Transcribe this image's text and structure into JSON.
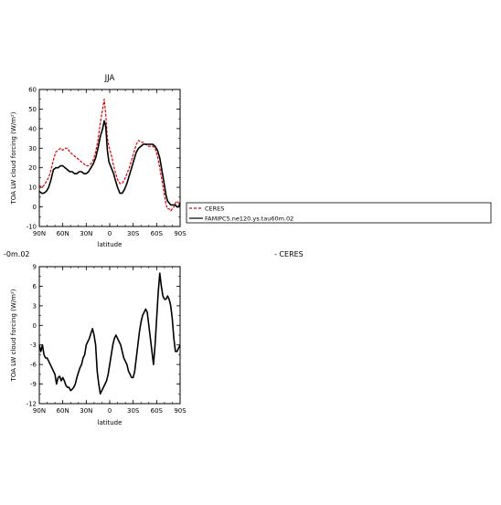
{
  "left_snippet": "-0m.02",
  "right_snippet": "- CERES",
  "legend": {
    "entries": [
      {
        "label": "CERES",
        "color": "#dd0000",
        "dash": true
      },
      {
        "label": "FAMIPC5.ne120.ys.tau60m.02",
        "color": "#000000",
        "dash": false
      }
    ]
  },
  "chart_data": [
    {
      "type": "line",
      "title": "JJA",
      "xlabel": "latitude",
      "ylabel": "TOA LW cloud forcing (W/m²)",
      "xlim": [
        90,
        -90
      ],
      "ylim": [
        -10,
        60
      ],
      "xtick_values": [
        90,
        60,
        30,
        0,
        -30,
        -60,
        -90
      ],
      "xtick_labels": [
        "90N",
        "60N",
        "30N",
        "0",
        "30S",
        "60S",
        "90S"
      ],
      "ytick_values": [
        -10,
        0,
        10,
        20,
        30,
        40,
        50,
        60
      ],
      "series": [
        {
          "name": "CERES",
          "color": "#dd0000",
          "dash": true,
          "x": [
            90,
            87,
            84,
            81,
            78,
            75,
            72,
            69,
            66,
            63,
            60,
            57,
            54,
            51,
            48,
            45,
            42,
            39,
            36,
            33,
            30,
            27,
            24,
            21,
            18,
            15,
            12,
            9,
            7,
            5,
            3,
            1,
            -1,
            -3,
            -5,
            -7,
            -10,
            -13,
            -16,
            -19,
            -22,
            -25,
            -28,
            -31,
            -34,
            -37,
            -40,
            -43,
            -46,
            -49,
            -52,
            -55,
            -58,
            -61,
            -64,
            -67,
            -70,
            -72,
            -74,
            -76,
            -78,
            -80,
            -82,
            -84,
            -86,
            -88,
            -90
          ],
          "values": [
            11,
            10,
            11,
            13,
            15,
            19,
            24,
            28,
            29,
            30,
            29,
            30,
            30,
            28,
            27,
            26,
            25,
            24,
            23,
            22,
            21,
            21,
            22,
            24,
            28,
            34,
            43,
            50,
            55,
            47,
            35,
            31,
            28,
            25,
            21,
            18,
            14,
            12,
            12,
            14,
            17,
            20,
            24,
            28,
            32,
            34,
            33,
            33,
            32,
            31,
            31,
            31,
            30,
            26,
            20,
            13,
            6,
            1,
            -1,
            -1,
            -2,
            -1,
            0,
            2,
            3,
            2,
            2
          ]
        },
        {
          "name": "FAMIPC5.ne120.ys.tau60m.02",
          "color": "#000000",
          "dash": false,
          "x": [
            90,
            87,
            84,
            81,
            78,
            75,
            72,
            69,
            66,
            63,
            60,
            57,
            54,
            51,
            48,
            45,
            42,
            39,
            36,
            33,
            30,
            27,
            24,
            21,
            18,
            15,
            12,
            9,
            7,
            5,
            3,
            1,
            -1,
            -3,
            -5,
            -7,
            -10,
            -13,
            -16,
            -19,
            -22,
            -25,
            -28,
            -31,
            -34,
            -37,
            -40,
            -43,
            -46,
            -49,
            -52,
            -55,
            -58,
            -61,
            -64,
            -67,
            -70,
            -72,
            -74,
            -76,
            -78,
            -80,
            -82,
            -84,
            -86,
            -88,
            -90
          ],
          "values": [
            8,
            7,
            7,
            8,
            10,
            14,
            19,
            20,
            20,
            21,
            21,
            20,
            19,
            18,
            18,
            17,
            17,
            18,
            18,
            17,
            17,
            18,
            20,
            22,
            25,
            30,
            36,
            40,
            44,
            41,
            29,
            23,
            21,
            19,
            17,
            14,
            10,
            7,
            7,
            9,
            12,
            16,
            20,
            24,
            28,
            30,
            31,
            32,
            32,
            32,
            32,
            32,
            31,
            29,
            25,
            18,
            11,
            6,
            3,
            2,
            1,
            1,
            1,
            1,
            0,
            0,
            2
          ]
        }
      ]
    },
    {
      "type": "line",
      "title": "",
      "xlabel": "latitude",
      "ylabel": "TOA LW cloud forcing (W/m²)",
      "xlim": [
        90,
        -90
      ],
      "ylim": [
        -12,
        9
      ],
      "xtick_values": [
        90,
        60,
        30,
        0,
        -30,
        -60,
        -90
      ],
      "xtick_labels": [
        "90N",
        "60N",
        "30N",
        "0",
        "30S",
        "60S",
        "90S"
      ],
      "ytick_values": [
        -12,
        -9,
        -6,
        -3,
        0,
        3,
        6,
        9
      ],
      "series": [
        {
          "color": "#000000",
          "dash": false,
          "x": [
            90,
            88,
            86,
            84,
            82,
            80,
            78,
            76,
            74,
            72,
            70,
            68,
            66,
            64,
            62,
            60,
            58,
            56,
            54,
            52,
            50,
            48,
            46,
            44,
            42,
            40,
            38,
            36,
            34,
            32,
            30,
            28,
            26,
            24,
            22,
            20,
            18,
            16,
            14,
            12,
            10,
            8,
            6,
            4,
            2,
            0,
            -2,
            -4,
            -6,
            -8,
            -10,
            -12,
            -14,
            -16,
            -18,
            -20,
            -22,
            -24,
            -26,
            -28,
            -30,
            -32,
            -34,
            -36,
            -38,
            -40,
            -42,
            -44,
            -46,
            -48,
            -50,
            -52,
            -54,
            -56,
            -58,
            -60,
            -62,
            -64,
            -66,
            -68,
            -70,
            -72,
            -74,
            -76,
            -78,
            -80,
            -82,
            -84,
            -86,
            -88,
            -90
          ],
          "values": [
            -3,
            -4,
            -3,
            -4.5,
            -5,
            -5,
            -5.5,
            -6,
            -6.5,
            -7,
            -7.5,
            -9,
            -8,
            -7.8,
            -8.5,
            -8,
            -8.5,
            -9.2,
            -9.5,
            -9.5,
            -10,
            -9.8,
            -9.5,
            -9,
            -8,
            -7.2,
            -6.5,
            -6,
            -5,
            -4.5,
            -3,
            -2.5,
            -2,
            -1.2,
            -0.5,
            -1.5,
            -3,
            -7,
            -9,
            -10.5,
            -10,
            -9.5,
            -9,
            -8.5,
            -7.5,
            -6,
            -4.5,
            -3,
            -2,
            -1.5,
            -2,
            -2.5,
            -3,
            -4,
            -5,
            -5.5,
            -6,
            -7,
            -7.5,
            -8,
            -8,
            -7,
            -5,
            -3,
            -1,
            0.5,
            1.5,
            2,
            2.5,
            2,
            0,
            -2,
            -4,
            -6,
            -3,
            1,
            5,
            8,
            6,
            4.5,
            4,
            4,
            4.5,
            4,
            3,
            1,
            -2,
            -4,
            -4,
            -3.5,
            -3
          ]
        }
      ]
    }
  ]
}
